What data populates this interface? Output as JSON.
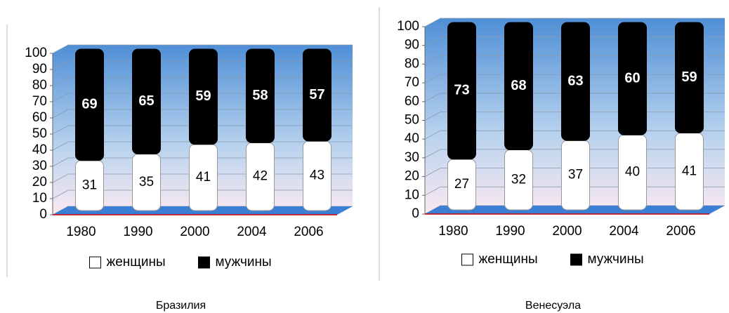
{
  "chart_data": [
    {
      "type": "bar",
      "stacked": true,
      "title": "Бразилия",
      "categories": [
        "1980",
        "1990",
        "2000",
        "2004",
        "2006"
      ],
      "series": [
        {
          "name": "женщины",
          "color": "#ffffff",
          "values": [
            31,
            35,
            41,
            42,
            43
          ]
        },
        {
          "name": "мужчины",
          "color": "#000000",
          "values": [
            69,
            65,
            59,
            58,
            57
          ]
        }
      ],
      "ylim": [
        0,
        100
      ],
      "yticks": [
        0,
        10,
        20,
        30,
        40,
        50,
        60,
        70,
        80,
        90,
        100
      ],
      "grid": true,
      "legend": "bottom"
    },
    {
      "type": "bar",
      "stacked": true,
      "title": "Венесуэла",
      "categories": [
        "1980",
        "1990",
        "2000",
        "2004",
        "2006"
      ],
      "series": [
        {
          "name": "женщины",
          "color": "#ffffff",
          "values": [
            27,
            32,
            37,
            40,
            41
          ]
        },
        {
          "name": "мужчины",
          "color": "#000000",
          "values": [
            73,
            68,
            63,
            60,
            59
          ]
        }
      ],
      "ylim": [
        0,
        100
      ],
      "yticks": [
        0,
        10,
        20,
        30,
        40,
        50,
        60,
        70,
        80,
        90,
        100
      ],
      "grid": true,
      "legend": "bottom"
    }
  ]
}
